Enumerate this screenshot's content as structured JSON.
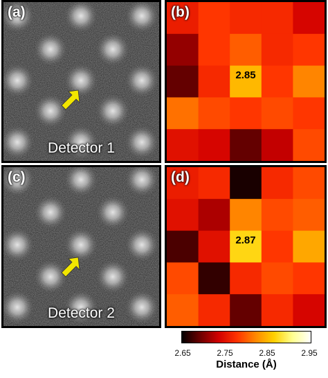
{
  "panels": {
    "a": {
      "label": "(a)",
      "detector_label": "Detector 1"
    },
    "b": {
      "label": "(b)",
      "highlight_value": "2.85"
    },
    "c": {
      "label": "(c)",
      "detector_label": "Detector 2"
    },
    "d": {
      "label": "(d)",
      "highlight_value": "2.87"
    }
  },
  "colors": {
    "arrow": "#f2e600",
    "frame": "#000000"
  },
  "colormap": {
    "min": 2.65,
    "max": 2.95,
    "stops": [
      "#000000",
      "#6b0000",
      "#d10000",
      "#ff3300",
      "#ff8800",
      "#ffd000",
      "#ffff90",
      "#ffffff"
    ]
  },
  "heatmap_b": [
    [
      2.76,
      2.78,
      2.77,
      2.77,
      2.74
    ],
    [
      2.71,
      2.78,
      2.8,
      2.77,
      2.78
    ],
    [
      2.69,
      2.77,
      2.85,
      2.78,
      2.82
    ],
    [
      2.81,
      2.79,
      2.78,
      2.79,
      2.78
    ],
    [
      2.75,
      2.74,
      2.69,
      2.73,
      2.79
    ]
  ],
  "heatmap_d": [
    [
      2.76,
      2.77,
      2.66,
      2.77,
      2.79
    ],
    [
      2.75,
      2.72,
      2.82,
      2.79,
      2.8
    ],
    [
      2.68,
      2.75,
      2.87,
      2.78,
      2.84
    ],
    [
      2.79,
      2.67,
      2.77,
      2.79,
      2.78
    ],
    [
      2.8,
      2.77,
      2.69,
      2.77,
      2.74
    ]
  ],
  "colorbar": {
    "ticks": [
      "2.65",
      "2.75",
      "2.85",
      "2.95"
    ],
    "title": "Distance (Å)"
  }
}
